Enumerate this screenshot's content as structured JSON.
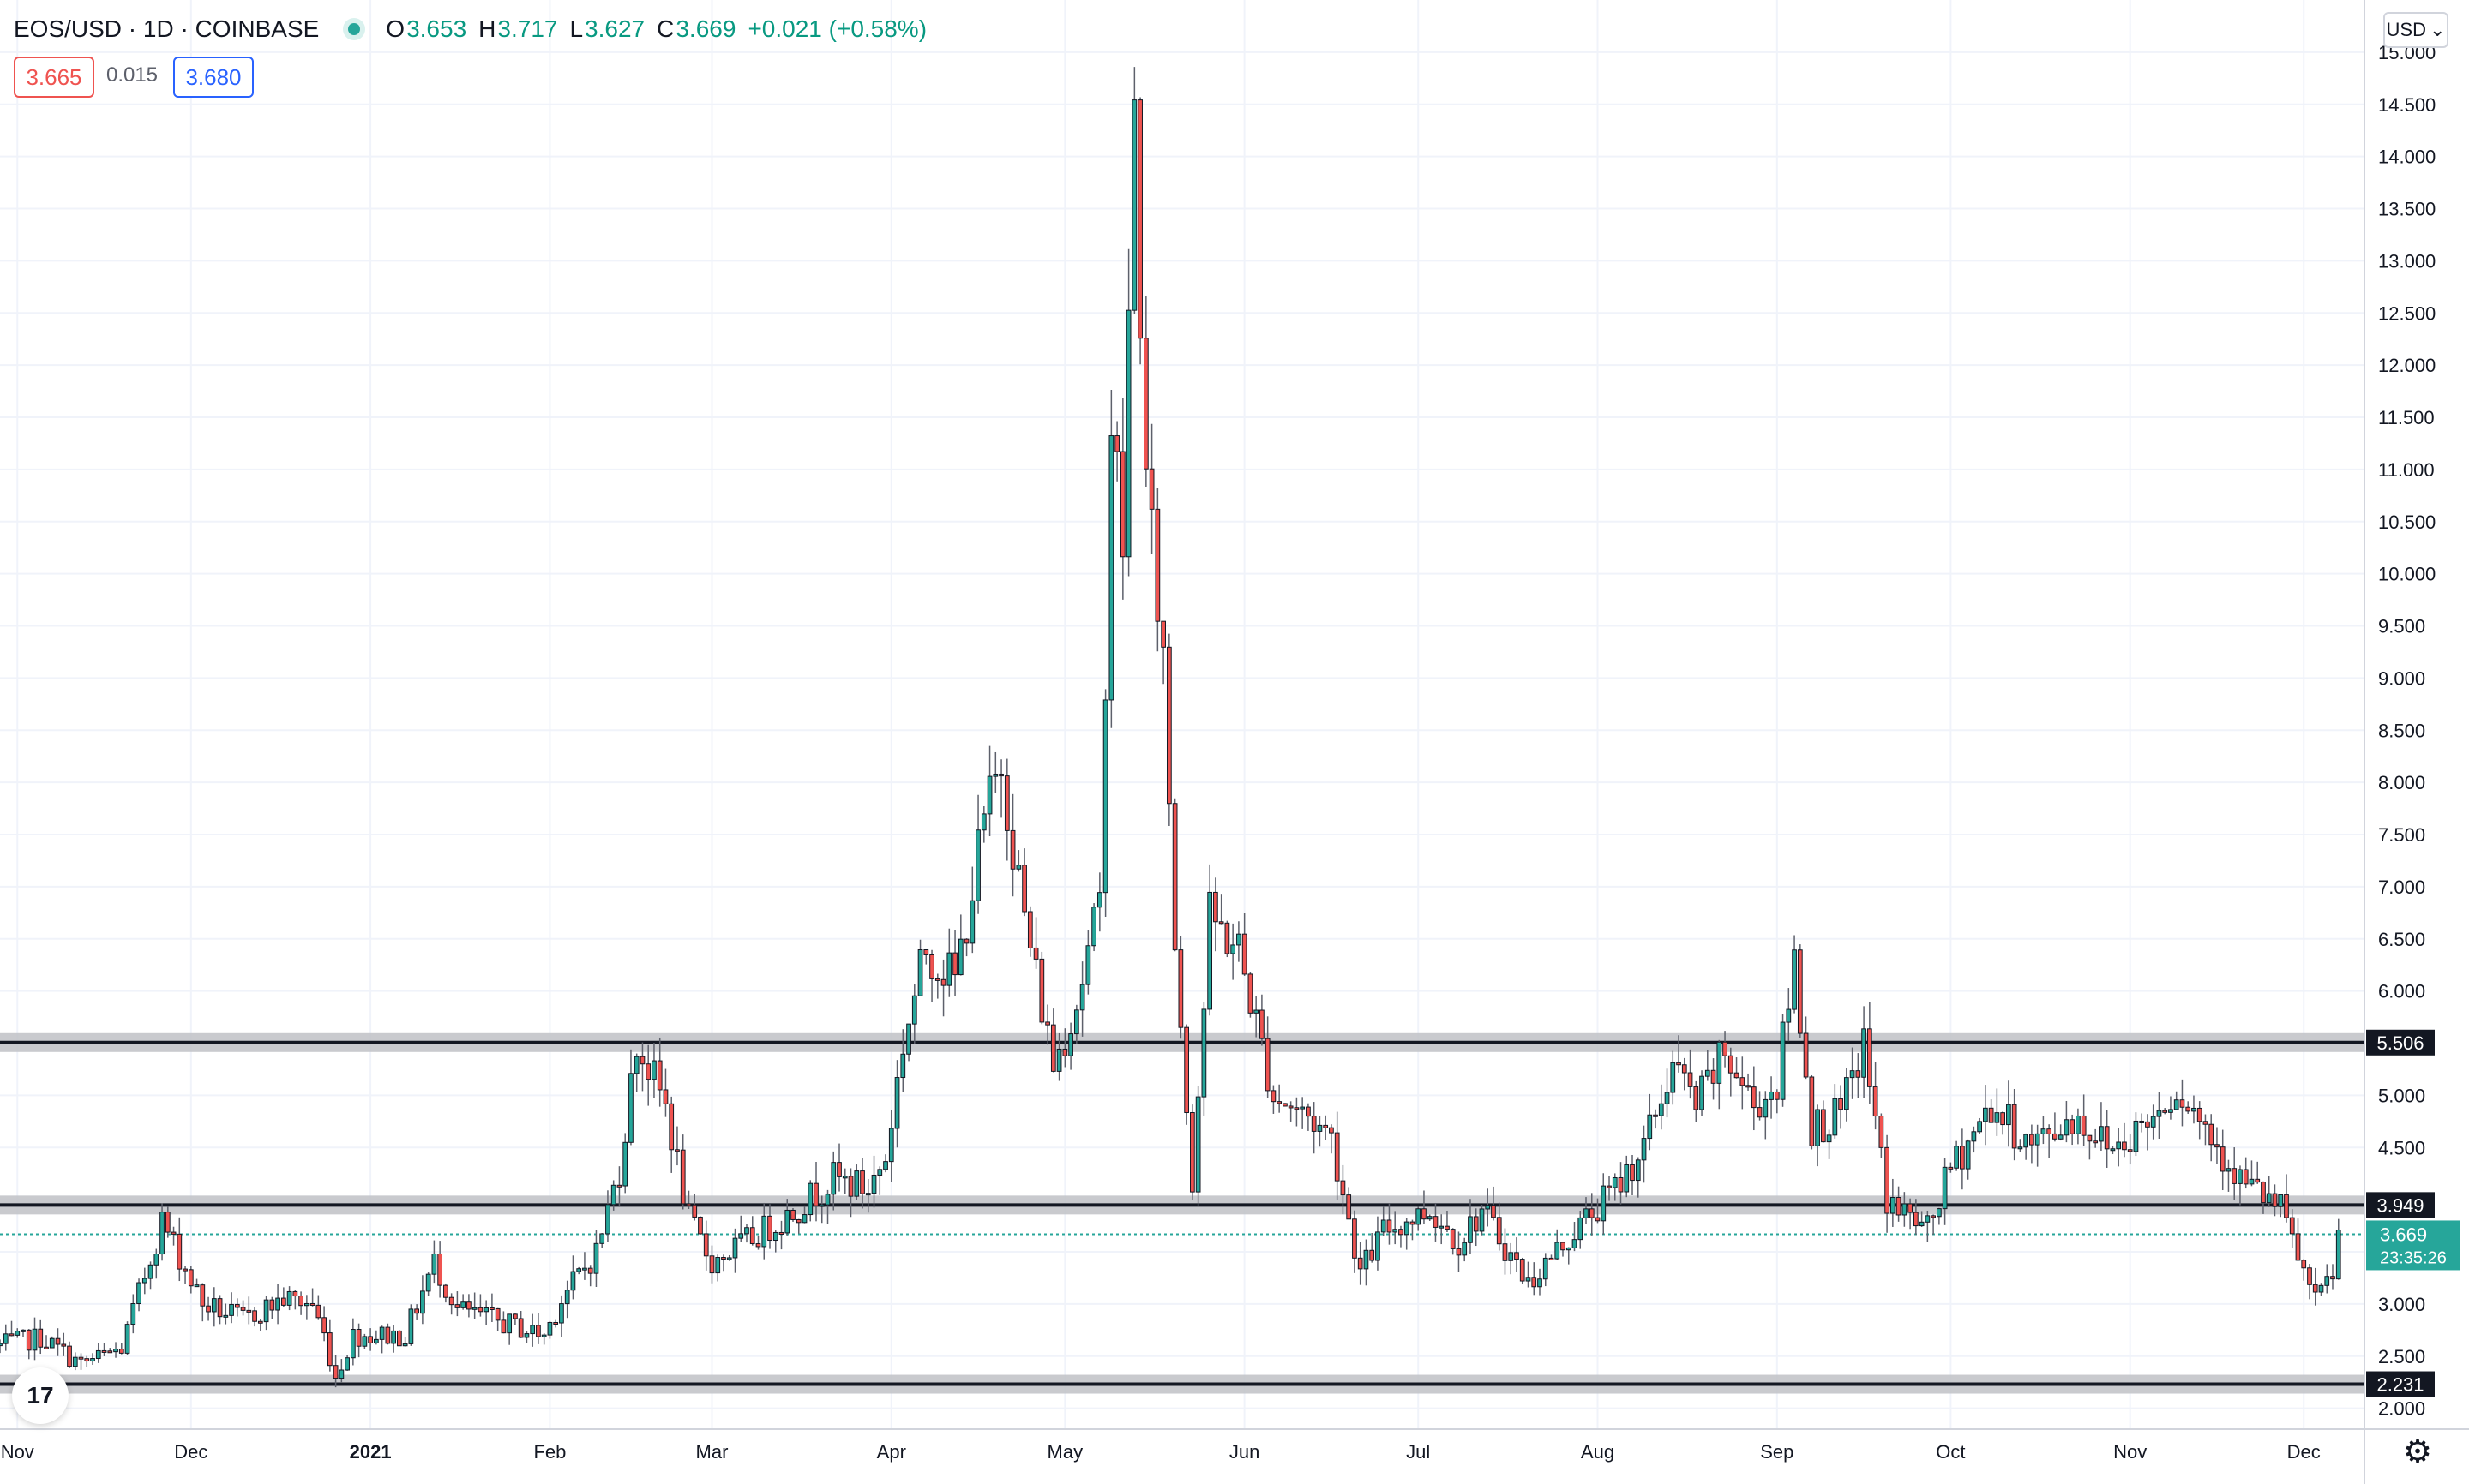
{
  "header": {
    "symbol": "EOS/USD · 1D · COINBASE",
    "open_label": "O",
    "open": "3.653",
    "high_label": "H",
    "high": "3.717",
    "low_label": "L",
    "low": "3.627",
    "close_label": "C",
    "close": "3.669",
    "change": "+0.021 (+0.58%)"
  },
  "quote": {
    "bid": "3.665",
    "spread": "0.015",
    "ask": "3.680"
  },
  "currency_button": {
    "label": "USD",
    "icon": "chevron-down-icon"
  },
  "logo": {
    "icon": "tradingview-logo-icon",
    "text": "17"
  },
  "settings_icon": "gear-icon",
  "colors": {
    "up": "#26a69a",
    "down": "#ef5350",
    "grid": "#f0f3fa",
    "level": "#131722",
    "last_price": "#26a69a"
  },
  "chart_data": {
    "type": "candlestick",
    "y_axis": {
      "min": 1.8,
      "max": 15.5,
      "scale": "linear",
      "ticks": [
        "2.000",
        "2.500",
        "3.000",
        "3.500",
        "4.000",
        "4.500",
        "5.000",
        "5.500",
        "6.000",
        "6.500",
        "7.000",
        "7.500",
        "8.000",
        "8.500",
        "9.000",
        "9.500",
        "10.000",
        "10.500",
        "11.000",
        "11.500",
        "12.000",
        "12.500",
        "13.000",
        "13.500",
        "14.000",
        "14.500",
        "15.000"
      ]
    },
    "x_axis": {
      "range": [
        "2020-10-29",
        "2021-12-10"
      ],
      "ticks": [
        {
          "date": "2020-11-01",
          "label": "Nov"
        },
        {
          "date": "2020-12-01",
          "label": "Dec"
        },
        {
          "date": "2021-01-01",
          "label": "2021",
          "bold": true
        },
        {
          "date": "2021-02-01",
          "label": "Feb"
        },
        {
          "date": "2021-03-01",
          "label": "Mar"
        },
        {
          "date": "2021-04-01",
          "label": "Apr"
        },
        {
          "date": "2021-05-01",
          "label": "May"
        },
        {
          "date": "2021-06-01",
          "label": "Jun"
        },
        {
          "date": "2021-07-01",
          "label": "Jul"
        },
        {
          "date": "2021-08-01",
          "label": "Aug"
        },
        {
          "date": "2021-09-01",
          "label": "Sep"
        },
        {
          "date": "2021-10-01",
          "label": "Oct"
        },
        {
          "date": "2021-11-01",
          "label": "Nov"
        },
        {
          "date": "2021-12-01",
          "label": "Dec"
        }
      ]
    },
    "horizontal_levels": [
      {
        "value": 5.506,
        "label": "5.506"
      },
      {
        "value": 3.949,
        "label": "3.949"
      },
      {
        "value": 2.231,
        "label": "2.231"
      }
    ],
    "last_price": {
      "value": 3.669,
      "label": "3.669",
      "countdown": "23:35:26"
    },
    "close_path": [
      [
        "2020-10-29",
        2.6
      ],
      [
        "2020-11-05",
        2.68
      ],
      [
        "2020-11-12",
        2.42
      ],
      [
        "2020-11-19",
        2.57
      ],
      [
        "2020-11-26",
        3.8
      ],
      [
        "2020-12-03",
        3.0
      ],
      [
        "2020-12-10",
        2.85
      ],
      [
        "2020-12-17",
        3.05
      ],
      [
        "2020-12-22",
        3.0
      ],
      [
        "2020-12-24",
        2.7
      ],
      [
        "2020-12-26",
        2.3
      ],
      [
        "2020-12-29",
        2.7
      ],
      [
        "2021-01-07",
        2.7
      ],
      [
        "2021-01-12",
        3.4
      ],
      [
        "2021-01-16",
        2.95
      ],
      [
        "2021-01-25",
        2.8
      ],
      [
        "2021-01-31",
        2.7
      ],
      [
        "2021-02-03",
        3.05
      ],
      [
        "2021-02-09",
        3.5
      ],
      [
        "2021-02-13",
        4.3
      ],
      [
        "2021-02-16",
        5.5
      ],
      [
        "2021-02-21",
        4.9
      ],
      [
        "2021-02-25",
        3.8
      ],
      [
        "2021-03-01",
        3.4
      ],
      [
        "2021-03-07",
        3.6
      ],
      [
        "2021-03-14",
        3.85
      ],
      [
        "2021-03-22",
        4.2
      ],
      [
        "2021-03-28",
        4.1
      ],
      [
        "2021-03-31",
        4.4
      ],
      [
        "2021-04-03",
        5.5
      ],
      [
        "2021-04-07",
        6.4
      ],
      [
        "2021-04-12",
        6.1
      ],
      [
        "2021-04-17",
        7.6
      ],
      [
        "2021-04-20",
        8.2
      ],
      [
        "2021-04-24",
        6.7
      ],
      [
        "2021-04-29",
        5.3
      ],
      [
        "2021-05-03",
        5.9
      ],
      [
        "2021-05-07",
        6.8
      ],
      [
        "2021-05-09",
        11.5
      ],
      [
        "2021-05-11",
        10.3
      ],
      [
        "2021-05-13",
        14.4
      ],
      [
        "2021-05-15",
        10.8
      ],
      [
        "2021-05-18",
        9.2
      ],
      [
        "2021-05-20",
        6.5
      ],
      [
        "2021-05-23",
        4.2
      ],
      [
        "2021-05-26",
        6.7
      ],
      [
        "2021-05-31",
        6.4
      ],
      [
        "2021-06-06",
        5.0
      ],
      [
        "2021-06-12",
        4.8
      ],
      [
        "2021-06-16",
        4.6
      ],
      [
        "2021-06-21",
        3.3
      ],
      [
        "2021-06-25",
        3.7
      ],
      [
        "2021-07-03",
        3.9
      ],
      [
        "2021-07-08",
        3.6
      ],
      [
        "2021-07-12",
        3.9
      ],
      [
        "2021-07-20",
        3.2
      ],
      [
        "2021-07-28",
        3.7
      ],
      [
        "2021-08-04",
        4.1
      ],
      [
        "2021-08-09",
        4.5
      ],
      [
        "2021-08-14",
        5.3
      ],
      [
        "2021-08-18",
        4.9
      ],
      [
        "2021-08-23",
        5.4
      ],
      [
        "2021-08-28",
        4.9
      ],
      [
        "2021-09-01",
        5.1
      ],
      [
        "2021-09-04",
        6.3
      ],
      [
        "2021-09-07",
        4.7
      ],
      [
        "2021-09-12",
        4.8
      ],
      [
        "2021-09-16",
        5.5
      ],
      [
        "2021-09-20",
        4.0
      ],
      [
        "2021-09-27",
        3.7
      ],
      [
        "2021-10-01",
        4.3
      ],
      [
        "2021-10-08",
        4.9
      ],
      [
        "2021-10-15",
        4.5
      ],
      [
        "2021-10-22",
        4.8
      ],
      [
        "2021-10-29",
        4.5
      ],
      [
        "2021-11-05",
        4.8
      ],
      [
        "2021-11-09",
        5.1
      ],
      [
        "2021-11-14",
        4.7
      ],
      [
        "2021-11-20",
        4.2
      ],
      [
        "2021-11-27",
        3.9
      ],
      [
        "2021-12-03",
        3.0
      ],
      [
        "2021-12-06",
        3.3
      ],
      [
        "2021-12-07",
        3.67
      ]
    ]
  }
}
